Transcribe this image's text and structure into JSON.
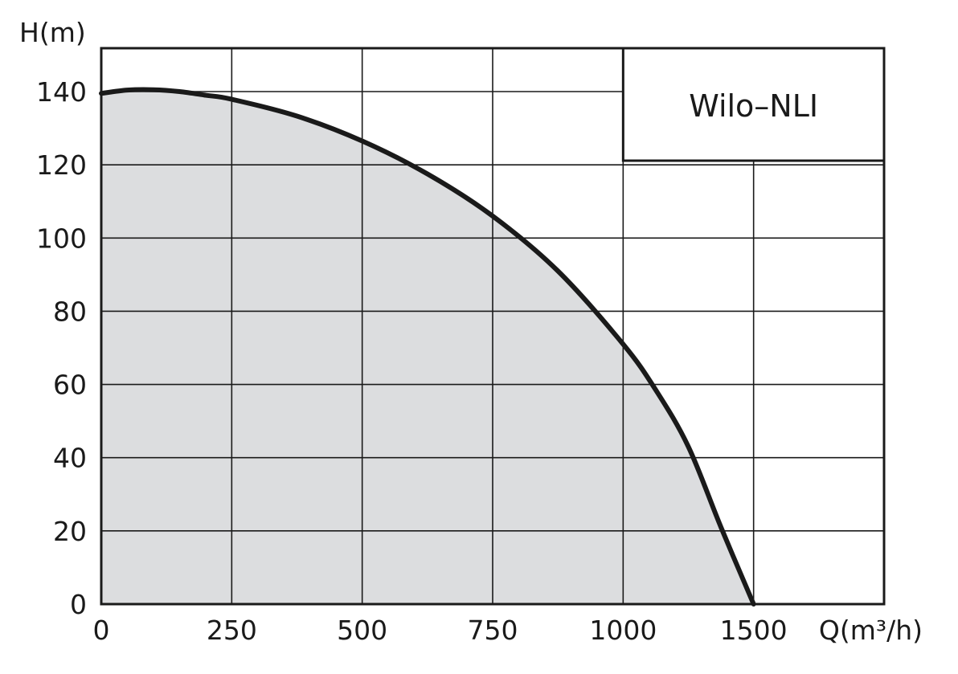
{
  "chart_data": {
    "type": "area",
    "legend_box_text": "Wilo–NLI",
    "legend_position": "top-right",
    "xlabel": "Q(m³/h)",
    "ylabel": "H(m)",
    "x_tick_labels": [
      "0",
      "250",
      "500",
      "750",
      "1000",
      "1500"
    ],
    "y_tick_labels": [
      "0",
      "20",
      "40",
      "60",
      "80",
      "100",
      "120",
      "140"
    ],
    "y_ticks": [
      0,
      20,
      40,
      60,
      80,
      100,
      120,
      140
    ],
    "xlim": [
      0,
      1500
    ],
    "ylim": [
      0,
      140
    ],
    "grid": true,
    "x_axis_note": "tick labels 0, 250, 500, 750, 1000 evenly spaced, next tick labelled 1500; extra unlabeled gridline at the right border",
    "series": [
      {
        "fill_color": "#dcdddf",
        "line_color": "#1a1a1a",
        "points": [
          {
            "tick_index": 0.0,
            "H": 139.5
          },
          {
            "tick_index": 0.2,
            "H": 140.4
          },
          {
            "tick_index": 0.4,
            "H": 140.5
          },
          {
            "tick_index": 0.6,
            "H": 140.0
          },
          {
            "tick_index": 0.8,
            "H": 139.0
          },
          {
            "tick_index": 1.0,
            "H": 137.9
          },
          {
            "tick_index": 1.5,
            "H": 133.3
          },
          {
            "tick_index": 2.0,
            "H": 126.5
          },
          {
            "tick_index": 2.5,
            "H": 117.5
          },
          {
            "tick_index": 3.0,
            "H": 106.0
          },
          {
            "tick_index": 3.5,
            "H": 91.0
          },
          {
            "tick_index": 4.0,
            "H": 71.0
          },
          {
            "tick_index": 4.25,
            "H": 58.5
          },
          {
            "tick_index": 4.5,
            "H": 43.0
          },
          {
            "tick_index": 4.75,
            "H": 21.0
          },
          {
            "tick_index": 5.0,
            "H": 0.0
          }
        ]
      }
    ]
  }
}
